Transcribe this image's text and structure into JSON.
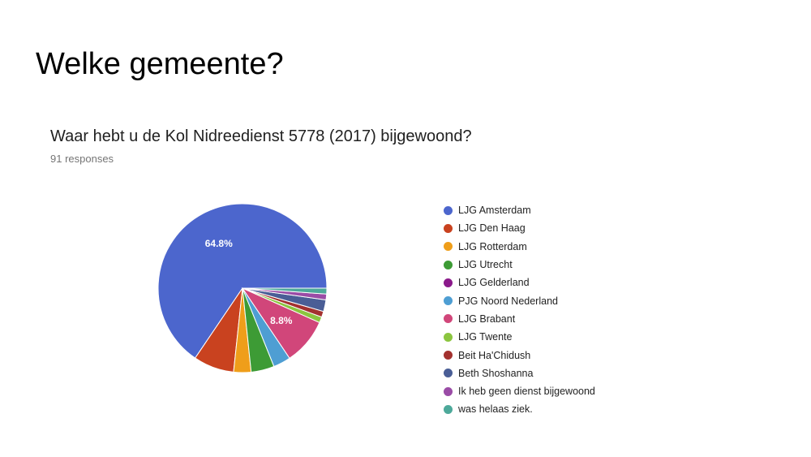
{
  "slide": {
    "title": "Welke gemeente?"
  },
  "chart_data": {
    "type": "pie",
    "title": "Waar hebt u de Kol Nidreedienst 5778 (2017) bijgewoond?",
    "subtitle": "91 responses",
    "legend_position": "right",
    "slices": [
      {
        "label": "LJG Amsterdam",
        "value": 64.8,
        "color": "#4c66cd",
        "data_label": "64.8%"
      },
      {
        "label": "LJG Den Haag",
        "value": 7.7,
        "color": "#c9421f",
        "data_label": ""
      },
      {
        "label": "LJG Rotterdam",
        "value": 3.3,
        "color": "#ef9e1a",
        "data_label": ""
      },
      {
        "label": "LJG Utrecht",
        "value": 4.4,
        "color": "#3d9b35",
        "data_label": ""
      },
      {
        "label": "LJG Gelderland",
        "value": 0.0,
        "color": "#8b1a8b",
        "data_label": ""
      },
      {
        "label": "PJG Noord Nederland",
        "value": 3.3,
        "color": "#4e9ed3",
        "data_label": ""
      },
      {
        "label": "LJG Brabant",
        "value": 8.8,
        "color": "#d1467a",
        "data_label": "8.8%"
      },
      {
        "label": "LJG Twente",
        "value": 1.1,
        "color": "#8bc53f",
        "data_label": ""
      },
      {
        "label": "Beit Ha'Chidush",
        "value": 1.1,
        "color": "#a3312f",
        "data_label": ""
      },
      {
        "label": "Beth Shoshanna",
        "value": 2.2,
        "color": "#4a5e96",
        "data_label": ""
      },
      {
        "label": "Ik heb geen dienst bijgewoond",
        "value": 1.1,
        "color": "#9a4ca6",
        "data_label": ""
      },
      {
        "label": "was helaas ziek.",
        "value": 1.1,
        "color": "#4da99a",
        "data_label": ""
      }
    ]
  }
}
